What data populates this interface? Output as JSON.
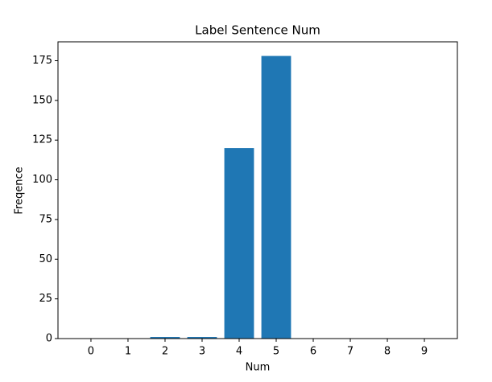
{
  "chart_data": {
    "type": "bar",
    "title": "Label Sentence Num",
    "x_label": "Num",
    "y_label": "Freqence",
    "x": [
      0,
      1,
      2,
      3,
      4,
      5,
      6,
      7,
      8,
      9
    ],
    "values": [
      0,
      0,
      1,
      1,
      120,
      178,
      0,
      0,
      0,
      0
    ],
    "color": "#1f77b4",
    "bar_width": 0.8,
    "xlim": [
      -0.89,
      9.89
    ],
    "xticks": [
      0,
      1,
      2,
      3,
      4,
      5,
      6,
      7,
      8,
      9
    ],
    "ylim": [
      0,
      186.9
    ],
    "yticks": [
      0,
      25,
      50,
      75,
      100,
      125,
      150,
      175
    ],
    "grid": false
  }
}
